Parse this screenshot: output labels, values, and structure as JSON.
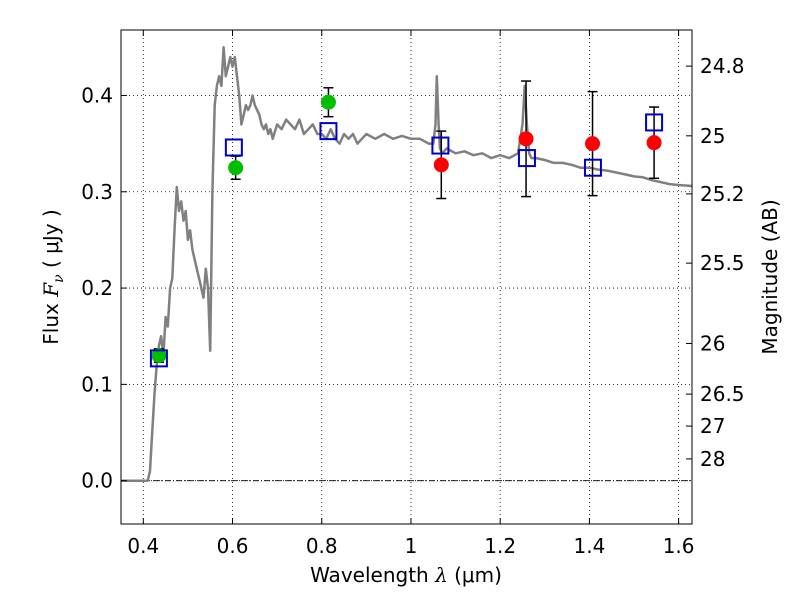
{
  "chart_data": {
    "type": "scatter",
    "xlabel": "Wavelength",
    "xlabel_symbol": "λ",
    "xlabel_unit": "(μm)",
    "ylabel": "Flux",
    "ylabel_symbol": "F",
    "ylabel_symbol_sub": "ν",
    "ylabel_unit": "( μJy )",
    "y2label": "Magnitude (AB)",
    "xlim": [
      0.35,
      1.63
    ],
    "ylim": [
      -0.045,
      0.468
    ],
    "grid": true,
    "x_ticks": [
      0.4,
      0.6,
      0.8,
      1.0,
      1.2,
      1.4,
      1.6
    ],
    "x_tick_labels": [
      "0.4",
      "0.6",
      "0.8",
      "1",
      "1.2",
      "1.4",
      "1.6"
    ],
    "y_ticks": [
      0.0,
      0.1,
      0.2,
      0.3,
      0.4
    ],
    "y_tick_labels": [
      "0.0",
      "0.1",
      "0.2",
      "0.3",
      "0.4"
    ],
    "mag_ticks": [
      {
        "label": "24.8",
        "flux": 0.4305
      },
      {
        "label": "25",
        "flux": 0.3581
      },
      {
        "label": "25.2",
        "flux": 0.2978
      },
      {
        "label": "25.5",
        "flux": 0.2259
      },
      {
        "label": "26",
        "flux": 0.1425
      },
      {
        "label": "26.5",
        "flux": 0.0899
      },
      {
        "label": "27",
        "flux": 0.0567
      },
      {
        "label": "28",
        "flux": 0.0226
      }
    ],
    "colors": {
      "model": "#808080",
      "observed_green": "#00bf00",
      "observed_red": "#ff0000",
      "model_box": "#0000cc",
      "errorbar": "#000000",
      "grid": "#000000"
    },
    "model_spectrum": {
      "x": [
        0.35,
        0.4,
        0.41,
        0.415,
        0.42,
        0.425,
        0.43,
        0.435,
        0.44,
        0.445,
        0.45,
        0.455,
        0.46,
        0.465,
        0.47,
        0.475,
        0.48,
        0.485,
        0.49,
        0.495,
        0.5,
        0.505,
        0.51,
        0.515,
        0.52,
        0.525,
        0.53,
        0.535,
        0.54,
        0.545,
        0.55,
        0.555,
        0.56,
        0.565,
        0.57,
        0.575,
        0.58,
        0.585,
        0.59,
        0.595,
        0.6,
        0.605,
        0.61,
        0.615,
        0.62,
        0.625,
        0.63,
        0.635,
        0.64,
        0.645,
        0.65,
        0.655,
        0.66,
        0.665,
        0.67,
        0.675,
        0.68,
        0.685,
        0.69,
        0.7,
        0.71,
        0.72,
        0.73,
        0.74,
        0.75,
        0.76,
        0.77,
        0.78,
        0.79,
        0.8,
        0.81,
        0.82,
        0.83,
        0.84,
        0.85,
        0.86,
        0.87,
        0.88,
        0.89,
        0.9,
        0.92,
        0.94,
        0.96,
        0.98,
        1.0,
        1.02,
        1.04,
        1.05,
        1.055,
        1.058,
        1.062,
        1.065,
        1.07,
        1.08,
        1.1,
        1.12,
        1.14,
        1.16,
        1.18,
        1.2,
        1.22,
        1.24,
        1.25,
        1.255,
        1.26,
        1.265,
        1.27,
        1.28,
        1.3,
        1.32,
        1.34,
        1.36,
        1.38,
        1.4,
        1.42,
        1.44,
        1.46,
        1.48,
        1.5,
        1.52,
        1.54,
        1.56,
        1.58,
        1.6,
        1.63
      ],
      "y": [
        0.0,
        0.0,
        0.0,
        0.01,
        0.05,
        0.09,
        0.12,
        0.14,
        0.15,
        0.13,
        0.17,
        0.16,
        0.2,
        0.21,
        0.26,
        0.305,
        0.28,
        0.29,
        0.27,
        0.28,
        0.25,
        0.26,
        0.24,
        0.23,
        0.22,
        0.21,
        0.2,
        0.19,
        0.22,
        0.2,
        0.135,
        0.3,
        0.39,
        0.41,
        0.42,
        0.41,
        0.45,
        0.42,
        0.43,
        0.44,
        0.43,
        0.44,
        0.42,
        0.4,
        0.37,
        0.38,
        0.39,
        0.385,
        0.39,
        0.4,
        0.39,
        0.385,
        0.38,
        0.37,
        0.365,
        0.37,
        0.36,
        0.365,
        0.355,
        0.37,
        0.365,
        0.375,
        0.37,
        0.365,
        0.375,
        0.36,
        0.365,
        0.37,
        0.36,
        0.36,
        0.355,
        0.365,
        0.355,
        0.35,
        0.36,
        0.355,
        0.36,
        0.35,
        0.355,
        0.36,
        0.355,
        0.36,
        0.355,
        0.358,
        0.355,
        0.355,
        0.35,
        0.35,
        0.37,
        0.42,
        0.37,
        0.345,
        0.34,
        0.345,
        0.34,
        0.342,
        0.338,
        0.34,
        0.335,
        0.338,
        0.335,
        0.34,
        0.37,
        0.41,
        0.37,
        0.34,
        0.335,
        0.335,
        0.333,
        0.33,
        0.33,
        0.328,
        0.325,
        0.325,
        0.323,
        0.322,
        0.32,
        0.318,
        0.316,
        0.315,
        0.312,
        0.31,
        0.308,
        0.307,
        0.306
      ]
    },
    "observed": [
      {
        "x": 0.435,
        "y": 0.13,
        "yerr": 0.007,
        "color": "green"
      },
      {
        "x": 0.607,
        "y": 0.325,
        "yerr": 0.012,
        "color": "green"
      },
      {
        "x": 0.815,
        "y": 0.393,
        "yerr": 0.015,
        "color": "green"
      },
      {
        "x": 1.068,
        "y": 0.328,
        "yerr": 0.035,
        "color": "red"
      },
      {
        "x": 1.258,
        "y": 0.355,
        "yerr": 0.06,
        "color": "red"
      },
      {
        "x": 1.407,
        "y": 0.35,
        "yerr": 0.054,
        "color": "red"
      },
      {
        "x": 1.545,
        "y": 0.351,
        "yerr": 0.037,
        "color": "red"
      }
    ],
    "model_boxes": [
      {
        "x": 0.435,
        "y": 0.127
      },
      {
        "x": 0.603,
        "y": 0.346
      },
      {
        "x": 0.815,
        "y": 0.363
      },
      {
        "x": 1.066,
        "y": 0.348
      },
      {
        "x": 1.26,
        "y": 0.335
      },
      {
        "x": 1.408,
        "y": 0.325
      },
      {
        "x": 1.545,
        "y": 0.372
      }
    ]
  }
}
